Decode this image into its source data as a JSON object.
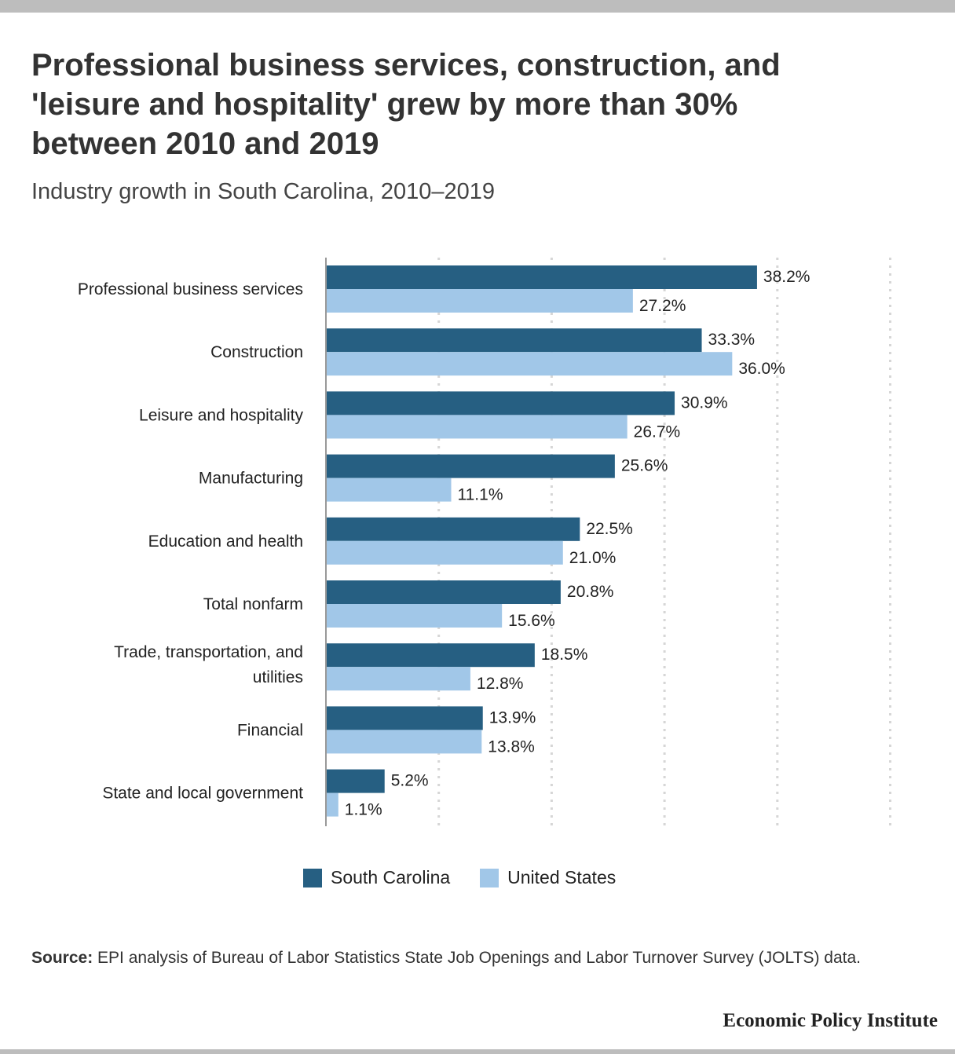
{
  "header": {
    "title": "Professional business services, construction, and 'leisure and hospitality' grew by more than 30% between 2010 and 2019",
    "subtitle": "Industry growth in South Carolina, 2010–2019"
  },
  "chart_data": {
    "type": "bar",
    "orientation": "horizontal",
    "categories": [
      "Professional business services",
      "Construction",
      "Leisure and hospitality",
      "Manufacturing",
      "Education and health",
      "Total nonfarm",
      "Trade, transportation, and utilities",
      "Financial",
      "State and local government"
    ],
    "series": [
      {
        "name": "South Carolina",
        "color": "#265f82",
        "values": [
          38.2,
          33.3,
          30.9,
          25.6,
          22.5,
          20.8,
          18.5,
          13.9,
          5.2
        ],
        "labels": [
          "38.2%",
          "33.3%",
          "30.9%",
          "25.6%",
          "22.5%",
          "20.8%",
          "18.5%",
          "13.9%",
          "5.2%"
        ]
      },
      {
        "name": "United States",
        "color": "#a1c7e8",
        "values": [
          27.2,
          36.0,
          26.7,
          11.1,
          21.0,
          15.6,
          12.8,
          13.8,
          1.1
        ],
        "labels": [
          "27.2%",
          "36.0%",
          "26.7%",
          "11.1%",
          "21.0%",
          "15.6%",
          "12.8%",
          "13.8%",
          "1.1%"
        ]
      }
    ],
    "xlim": [
      0,
      50
    ],
    "grid": true,
    "legend_position": "bottom"
  },
  "legend": {
    "items": [
      {
        "label": "South Carolina",
        "color": "#265f82"
      },
      {
        "label": "United States",
        "color": "#a1c7e8"
      }
    ]
  },
  "footer": {
    "source_label": "Source:",
    "source_text": "EPI analysis of Bureau of Labor Statistics State Job Openings and Labor Turnover Survey (JOLTS) data.",
    "brand": "Economic Policy Institute"
  }
}
